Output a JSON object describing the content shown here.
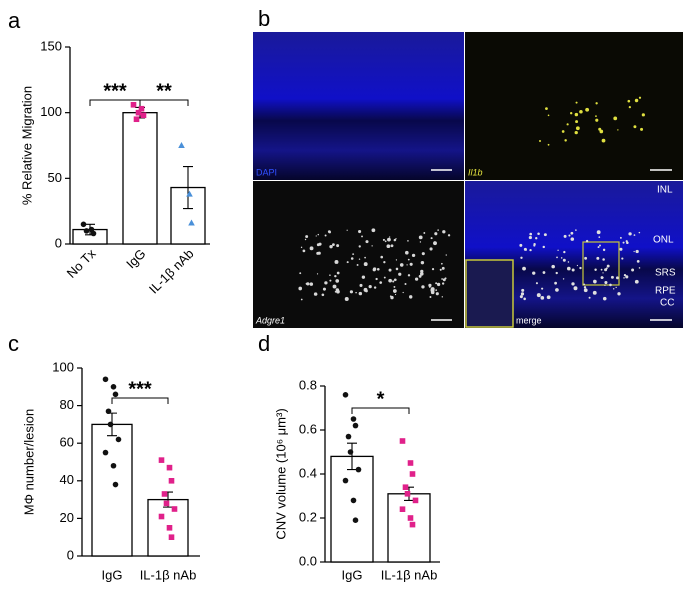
{
  "panels": [
    "a",
    "b",
    "c",
    "d"
  ],
  "images": {
    "labels": [
      "DAPI",
      "Il1b",
      "Adgre1",
      "merge"
    ],
    "layers": [
      "INL",
      "ONL",
      "SRS",
      "RPE",
      "CC"
    ]
  },
  "chart_data": [
    {
      "type": "bar",
      "ylabel": "% Relative Migration",
      "categories": [
        "No Tx",
        "IgG",
        "IL-1β nAb"
      ],
      "values": [
        11,
        100,
        43
      ],
      "errors": [
        4,
        4,
        16
      ],
      "points": [
        [
          15,
          11,
          8,
          10
        ],
        [
          106,
          103,
          98,
          95,
          100
        ],
        [
          75,
          38,
          16
        ]
      ],
      "point_colors": [
        "#111111",
        "#e0218a",
        "#4a90d9"
      ],
      "point_shapes": [
        "circle",
        "square",
        "triangle"
      ],
      "color": "#ffffff",
      "ylim": [
        0,
        150
      ],
      "yticks": [
        0,
        50,
        100,
        150
      ],
      "annotations": [
        {
          "text": "***",
          "between": [
            "No Tx",
            "IgG"
          ]
        },
        {
          "text": "**",
          "between": [
            "IgG",
            "IL-1β nAb"
          ]
        }
      ]
    },
    {
      "type": "bar",
      "ylabel": "MΦ number/lesion",
      "categories": [
        "IgG",
        "IL-1β nAb"
      ],
      "values": [
        70,
        30
      ],
      "errors": [
        6,
        4
      ],
      "points": [
        [
          94,
          90,
          86,
          77,
          70,
          62,
          55,
          48,
          38
        ],
        [
          51,
          47,
          40,
          33,
          28,
          25,
          21,
          15,
          10
        ]
      ],
      "point_colors": [
        "#111111",
        "#e0218a"
      ],
      "point_shapes": [
        "circle",
        "square"
      ],
      "color": "#ffffff",
      "ylim": [
        0,
        100
      ],
      "yticks": [
        0,
        20,
        40,
        60,
        80,
        100
      ],
      "annotations": [
        {
          "text": "***",
          "between": [
            "IgG",
            "IL-1β nAb"
          ]
        }
      ]
    },
    {
      "type": "bar",
      "ylabel": "CNV volume (10⁶ μm³)",
      "categories": [
        "IgG",
        "IL-1β nAb"
      ],
      "values": [
        0.48,
        0.31
      ],
      "errors": [
        0.06,
        0.03
      ],
      "points": [
        [
          0.76,
          0.65,
          0.62,
          0.57,
          0.5,
          0.42,
          0.37,
          0.28,
          0.19
        ],
        [
          0.55,
          0.45,
          0.4,
          0.34,
          0.31,
          0.28,
          0.24,
          0.2,
          0.17
        ]
      ],
      "point_colors": [
        "#111111",
        "#e0218a"
      ],
      "point_shapes": [
        "circle",
        "square"
      ],
      "color": "#ffffff",
      "ylim": [
        0,
        0.8
      ],
      "yticks": [
        {
          "value": 0,
          "label": "0.0"
        },
        0.2,
        0.4,
        0.6,
        0.8
      ],
      "annotations": [
        {
          "text": "*",
          "between": [
            "IgG",
            "IL-1β nAb"
          ]
        }
      ]
    }
  ]
}
